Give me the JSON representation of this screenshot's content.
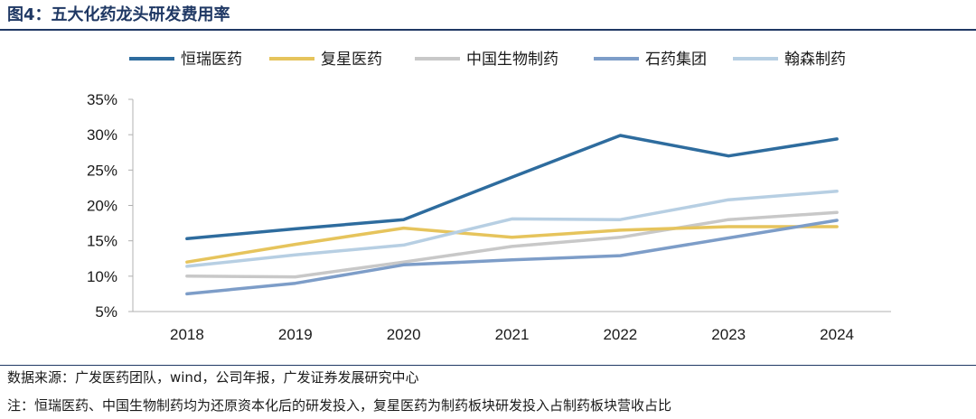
{
  "title": "图4：五大化药龙头研发费用率",
  "source": "数据来源：广发医药团队，wind，公司年报，广发证券发展研究中心",
  "note": "注：恒瑞医药、中国生物制药均为还原资本化后的研发投入，复星医药为制药板块研发投入占制药板块营收占比",
  "chart_data": {
    "type": "line",
    "x": [
      "2018",
      "2019",
      "2020",
      "2021",
      "2022",
      "2023",
      "2024"
    ],
    "ylim": [
      5,
      35
    ],
    "yticks": [
      "5%",
      "10%",
      "15%",
      "20%",
      "25%",
      "30%",
      "35%"
    ],
    "ytick_values": [
      5,
      10,
      15,
      20,
      25,
      30,
      35
    ],
    "grid": false,
    "legend": "top",
    "series": [
      {
        "name": "恒瑞医药",
        "color": "#2e6c9e",
        "values": [
          15.3,
          16.7,
          18.0,
          24.0,
          29.9,
          27.0,
          29.4
        ]
      },
      {
        "name": "复星医药",
        "color": "#e6c45c",
        "values": [
          12.0,
          14.5,
          16.8,
          15.5,
          16.5,
          17.0,
          17.0
        ]
      },
      {
        "name": "中国生物制药",
        "color": "#c8c8c8",
        "values": [
          10.0,
          9.9,
          12.0,
          14.2,
          15.5,
          18.0,
          19.0
        ]
      },
      {
        "name": "石药集团",
        "color": "#7d9dc8",
        "values": [
          7.5,
          9.0,
          11.6,
          12.3,
          12.9,
          15.4,
          17.9
        ]
      },
      {
        "name": "翰森制药",
        "color": "#b7cfe3",
        "values": [
          11.4,
          13.0,
          14.4,
          18.1,
          18.0,
          20.8,
          22.0
        ]
      }
    ]
  }
}
